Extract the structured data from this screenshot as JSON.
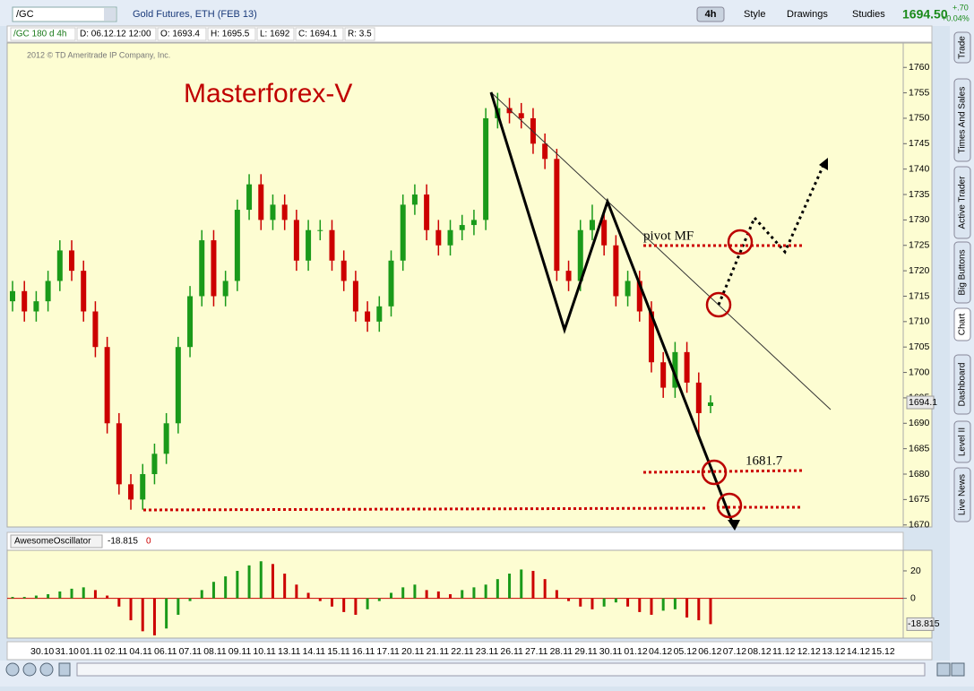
{
  "toolbar": {
    "symbol": "/GC",
    "description": "Gold Futures, ETH (FEB 13)",
    "aggregation": "4h",
    "buttons": [
      "Style",
      "Drawings",
      "Studies"
    ],
    "last_price": "1694.50",
    "change": "+.70",
    "change_pct": "+0.04%"
  },
  "info_bar": [
    "/GC 180 d 4h",
    "D: 06.12.12 12:00",
    "O: 1693.4",
    "H: 1695.5",
    "L: 1692",
    "C: 1694.1",
    "R: 3.5"
  ],
  "copyright": "2012 © TD Ameritrade IP Company, Inc.",
  "watermark": "Masterforex-V",
  "annotations": [
    "pivot MF",
    "1681.7"
  ],
  "side_tabs": [
    "Trade",
    "Times And Sales",
    "Active Trader",
    "Big Buttons",
    "Chart",
    "Dashboard",
    "Level II",
    "Live News"
  ],
  "chart_data": [
    {
      "type": "candlestick",
      "up_color": "#1a9a1a",
      "down_color": "#cc0000",
      "ylim": [
        1669.6,
        1764.8
      ],
      "yticks": [
        1670,
        1675,
        1680,
        1685,
        1690,
        1695,
        1700,
        1705,
        1710,
        1715,
        1720,
        1725,
        1730,
        1735,
        1740,
        1745,
        1750,
        1755,
        1760
      ],
      "x_labels": [
        "30.10",
        "31.10",
        "01.11",
        "02.11",
        "04.11",
        "06.11",
        "07.11",
        "08.11",
        "09.11",
        "10.11",
        "13.11",
        "14.11",
        "15.11",
        "16.11",
        "17.11",
        "20.11",
        "21.11",
        "22.11",
        "23.11",
        "26.11",
        "27.11",
        "28.11",
        "29.11",
        "30.11",
        "01.12",
        "04.12",
        "05.12",
        "06.12",
        "07.12",
        "08.12",
        "11.12",
        "12.12",
        "13.12",
        "14.12",
        "15.12"
      ],
      "open": [
        1714,
        1716,
        1712,
        1714,
        1718,
        1724,
        1720,
        1712,
        1705,
        1690,
        1678,
        1675,
        1680,
        1684,
        1690,
        1705,
        1715,
        1726,
        1715,
        1718,
        1732,
        1737,
        1730,
        1733,
        1730,
        1722,
        1728,
        1728,
        1722,
        1718,
        1712,
        1710,
        1713,
        1722,
        1733,
        1735,
        1728,
        1725,
        1728,
        1729,
        1730,
        1750,
        1752,
        1751,
        1750,
        1745,
        1742,
        1720,
        1718,
        1728,
        1730,
        1725,
        1715,
        1718,
        1712,
        1702,
        1697,
        1704,
        1698,
        1693.4
      ],
      "high": [
        1718,
        1718,
        1716,
        1720,
        1726,
        1726,
        1722,
        1714,
        1707,
        1692,
        1680,
        1682,
        1686,
        1692,
        1707,
        1717,
        1728,
        1728,
        1720,
        1734,
        1739,
        1739,
        1735,
        1735,
        1732,
        1730,
        1730,
        1730,
        1724,
        1720,
        1714,
        1715,
        1724,
        1735,
        1737,
        1737,
        1730,
        1730,
        1731,
        1732,
        1752,
        1755,
        1754,
        1753,
        1752,
        1747,
        1744,
        1722,
        1730,
        1733,
        1732,
        1727,
        1720,
        1720,
        1714,
        1704,
        1706,
        1706,
        1700,
        1695.5
      ],
      "low": [
        1712,
        1710,
        1710,
        1712,
        1716,
        1718,
        1710,
        1703,
        1688,
        1676,
        1673,
        1673,
        1678,
        1682,
        1688,
        1703,
        1713,
        1713,
        1713,
        1716,
        1730,
        1728,
        1728,
        1728,
        1720,
        1720,
        1726,
        1720,
        1716,
        1710,
        1708,
        1708,
        1711,
        1720,
        1731,
        1726,
        1723,
        1723,
        1726,
        1727,
        1728,
        1748,
        1749,
        1748,
        1743,
        1740,
        1718,
        1716,
        1716,
        1726,
        1723,
        1713,
        1713,
        1710,
        1700,
        1695,
        1695,
        1696,
        1687,
        1692
      ],
      "close": [
        1716,
        1712,
        1714,
        1718,
        1724,
        1720,
        1712,
        1705,
        1690,
        1678,
        1675,
        1680,
        1684,
        1690,
        1705,
        1715,
        1726,
        1715,
        1718,
        1732,
        1737,
        1730,
        1733,
        1730,
        1722,
        1728,
        1728,
        1722,
        1718,
        1712,
        1710,
        1713,
        1722,
        1733,
        1735,
        1728,
        1725,
        1728,
        1729,
        1730,
        1750,
        1752,
        1751,
        1750,
        1745,
        1742,
        1720,
        1718,
        1728,
        1730,
        1725,
        1715,
        1718,
        1712,
        1702,
        1697,
        1704,
        1698,
        1692,
        1694.1
      ]
    },
    {
      "type": "bar",
      "name": "AwesomeOscillator",
      "rising_color": "#1a9a1a",
      "falling_color": "#cc0000",
      "zero_color": "#cc0000",
      "ylim": [
        -29,
        35
      ],
      "yticks": [
        20,
        0
      ],
      "values": [
        1,
        1,
        2,
        3,
        5,
        7,
        8,
        6,
        2,
        -6,
        -16,
        -24,
        -27,
        -22,
        -12,
        -2,
        6,
        12,
        16,
        20,
        24,
        27,
        25,
        18,
        10,
        4,
        -2,
        -6,
        -10,
        -12,
        -8,
        -2,
        4,
        8,
        10,
        6,
        5,
        3,
        6,
        8,
        10,
        14,
        18,
        21,
        20,
        14,
        6,
        -2,
        -6,
        -8,
        -6,
        -3,
        -6,
        -10,
        -12,
        -9,
        -8,
        -14,
        -16,
        -18.815
      ],
      "zero_label": "0"
    }
  ]
}
